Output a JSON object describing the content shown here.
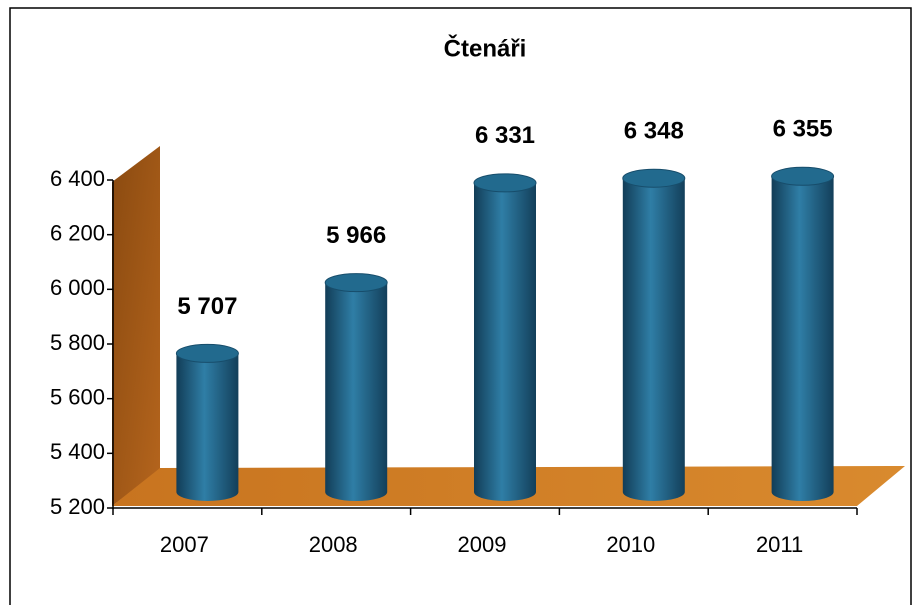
{
  "chart_data": {
    "type": "bar",
    "title": "Čtenáři",
    "categories": [
      "2007",
      "2008",
      "2009",
      "2010",
      "2011"
    ],
    "values": [
      5707,
      5966,
      6331,
      6348,
      6355
    ],
    "value_labels": [
      "5 707",
      "5 966",
      "6 331",
      "6 348",
      "6 355"
    ],
    "color": "#226a8e",
    "ylim": [
      5200,
      6400
    ],
    "yticks": [
      {
        "value": 5200,
        "label": "5 200"
      },
      {
        "value": 5400,
        "label": "5 400"
      },
      {
        "value": 5600,
        "label": "5 600"
      },
      {
        "value": 5800,
        "label": "5 800"
      },
      {
        "value": 6000,
        "label": "6 000"
      },
      {
        "value": 6200,
        "label": "6 200"
      },
      {
        "value": 6400,
        "label": "6 400"
      }
    ]
  }
}
